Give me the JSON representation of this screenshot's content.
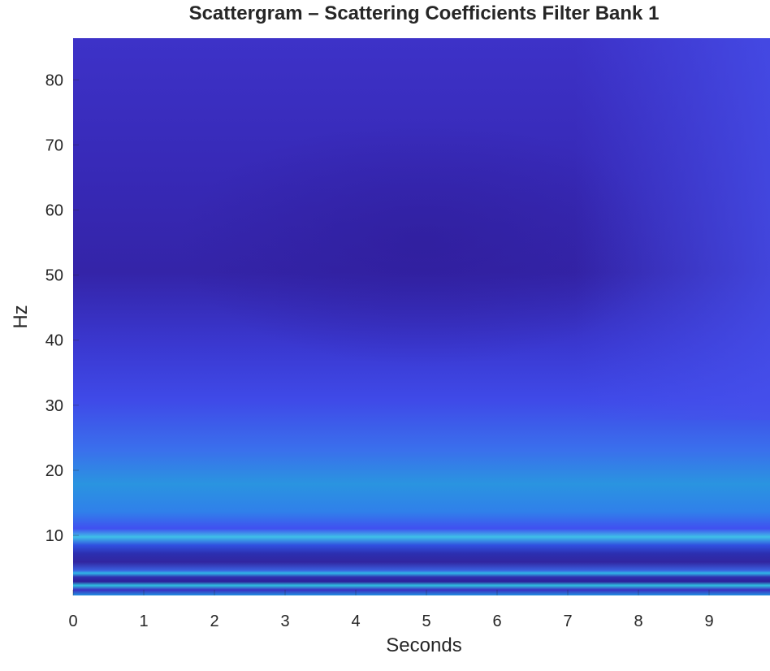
{
  "chart_data": {
    "type": "heatmap",
    "title": "Scattergram – Scattering Coefficients Filter Bank 1",
    "xlabel": "Seconds",
    "ylabel": "Hz",
    "xlim": [
      0,
      9.86
    ],
    "ylim": [
      0.77,
      86.4
    ],
    "xticks": [
      0,
      1,
      2,
      3,
      4,
      5,
      6,
      7,
      8,
      9
    ],
    "yticks": [
      10,
      20,
      30,
      40,
      50,
      60,
      70,
      80
    ]
  }
}
